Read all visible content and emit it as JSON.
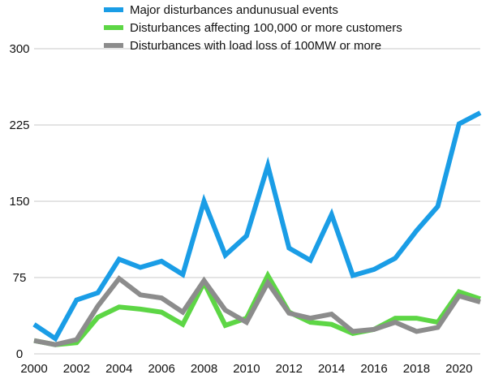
{
  "chart_data": {
    "type": "line",
    "title": "",
    "xlabel": "",
    "ylabel": "",
    "x": [
      2000,
      2001,
      2002,
      2003,
      2004,
      2005,
      2006,
      2007,
      2008,
      2009,
      2010,
      2011,
      2012,
      2013,
      2014,
      2015,
      2016,
      2017,
      2018,
      2019,
      2020,
      2021
    ],
    "xlim": [
      2000,
      2021
    ],
    "ylim": [
      0,
      300
    ],
    "yticks": [
      0,
      75,
      150,
      225,
      300
    ],
    "xticks": [
      2000,
      2002,
      2004,
      2006,
      2008,
      2010,
      2012,
      2014,
      2016,
      2018,
      2020
    ],
    "grid": "horizontal",
    "legend_position": "top",
    "series": [
      {
        "name": "Major disturbances andunusual events",
        "color": "#1a9de6",
        "values": [
          29,
          15,
          53,
          60,
          93,
          85,
          91,
          78,
          150,
          97,
          116,
          185,
          104,
          92,
          137,
          77,
          83,
          94,
          121,
          145,
          226,
          237
        ]
      },
      {
        "name": "Disturbances affecting 100,000 or more customers",
        "color": "#5dd645",
        "values": [
          13,
          9,
          11,
          36,
          46,
          44,
          41,
          29,
          70,
          28,
          35,
          77,
          41,
          31,
          29,
          20,
          24,
          35,
          35,
          31,
          61,
          54
        ]
      },
      {
        "name": "Disturbances with load loss of 100MW or more",
        "color": "#8c8c8c",
        "values": [
          13,
          9,
          14,
          47,
          74,
          58,
          55,
          41,
          72,
          43,
          31,
          70,
          40,
          35,
          39,
          22,
          24,
          31,
          22,
          26,
          57,
          51
        ]
      }
    ]
  }
}
